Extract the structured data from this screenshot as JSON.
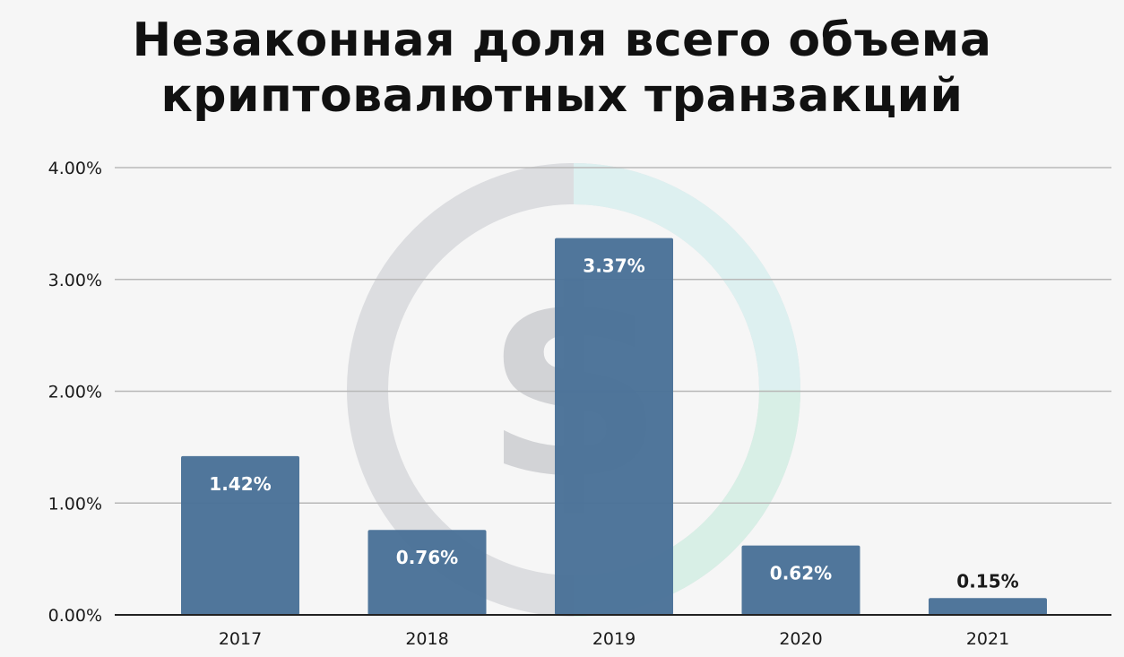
{
  "title_lines": [
    "Незаконная доля всего объема",
    "криптовалютных транзакций"
  ],
  "watermark": {
    "icon": "dollar-coin-icon",
    "symbol": "$"
  },
  "colors": {
    "bar": "#4a7298",
    "grid": "#b8b8b8",
    "axis": "#222222",
    "label_inside": "#ffffff",
    "label_outside": "#1a1a1a"
  },
  "chart_data": {
    "type": "bar",
    "categories": [
      "2017",
      "2018",
      "2019",
      "2020",
      "2021"
    ],
    "values": [
      1.42,
      0.76,
      3.37,
      0.62,
      0.15
    ],
    "data_labels": [
      "1.42%",
      "0.76%",
      "3.37%",
      "0.62%",
      "0.15%"
    ],
    "yticks": [
      "0.00%",
      "1.00%",
      "2.00%",
      "3.00%",
      "4.00%"
    ],
    "ylim": [
      0,
      4
    ],
    "grid": true,
    "legend": "none",
    "xlabel": "",
    "ylabel": ""
  }
}
